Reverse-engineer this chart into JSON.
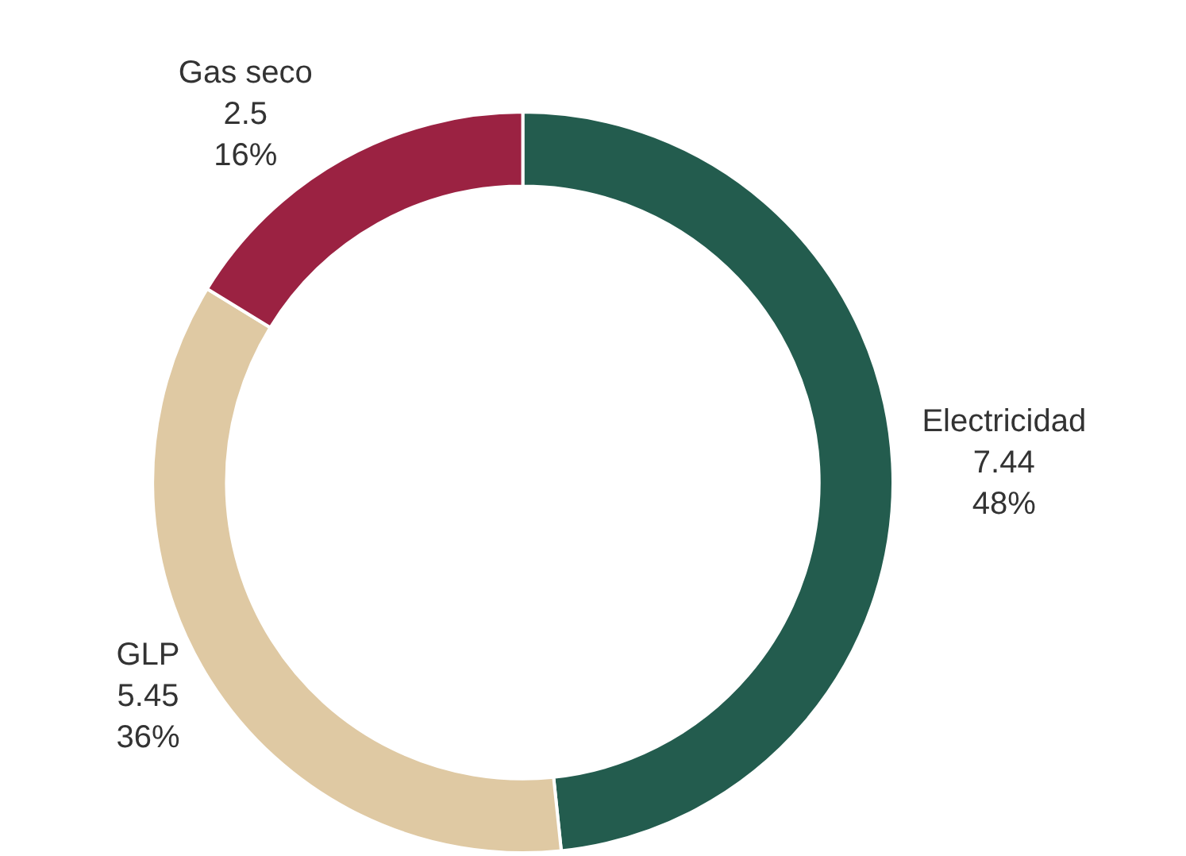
{
  "chart_data": {
    "type": "donut",
    "categories": [
      "Electricidad",
      "GLP",
      "Gas seco"
    ],
    "values": [
      7.44,
      5.45,
      2.5
    ],
    "colors": [
      "#235c4e",
      "#dfc9a3",
      "#9b2242"
    ],
    "value_labels": [
      "7.44\n48%",
      "5.45\n36%",
      "2.5\n16%"
    ]
  }
}
